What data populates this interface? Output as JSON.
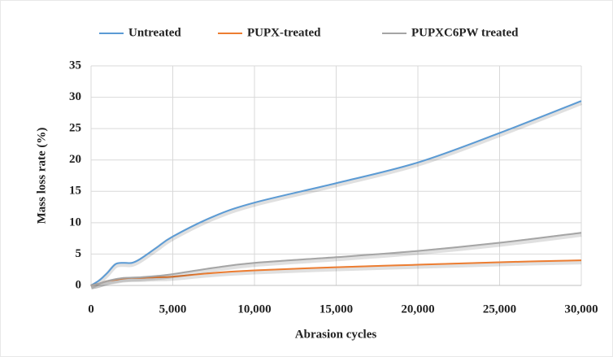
{
  "chart_data": {
    "type": "line",
    "xlabel": "Abrasion cycles",
    "ylabel": "Mass loss rate  (%)",
    "x": [
      0,
      500,
      1000,
      1500,
      2000,
      2500,
      3000,
      4000,
      5000,
      7500,
      10000,
      15000,
      20000,
      25000,
      30000
    ],
    "series": [
      {
        "name": "Untreated",
        "color": "#5b9bd5",
        "values": [
          0,
          0.8,
          2.0,
          3.4,
          3.6,
          3.6,
          4.2,
          6.0,
          7.8,
          11.0,
          13.2,
          16.3,
          19.6,
          24.3,
          29.4
        ]
      },
      {
        "name": "PUPX-treated",
        "color": "#ed7d31",
        "values": [
          0,
          0.3,
          0.7,
          0.9,
          1.1,
          1.2,
          1.2,
          1.3,
          1.4,
          2.0,
          2.4,
          2.9,
          3.3,
          3.7,
          4.0
        ]
      },
      {
        "name": "PUPXC6PW treated",
        "color": "#a5a5a5",
        "values": [
          0,
          0.3,
          0.7,
          1.0,
          1.2,
          1.25,
          1.3,
          1.5,
          1.8,
          2.8,
          3.6,
          4.5,
          5.5,
          6.8,
          8.4
        ]
      }
    ],
    "xlim": [
      0,
      30000
    ],
    "xticks": [
      0,
      {
        "value": 5000,
        "label": "5,000"
      },
      {
        "value": 10000,
        "label": "10,000"
      },
      {
        "value": 15000,
        "label": "15,000"
      },
      {
        "value": 20000,
        "label": "20,000"
      },
      {
        "value": 25000,
        "label": "25,000"
      },
      {
        "value": 30000,
        "label": "30,000"
      }
    ],
    "ylim": [
      0,
      35
    ],
    "yticks": [
      0,
      5,
      10,
      15,
      20,
      25,
      30,
      35
    ],
    "grid": true,
    "legend": "top"
  }
}
